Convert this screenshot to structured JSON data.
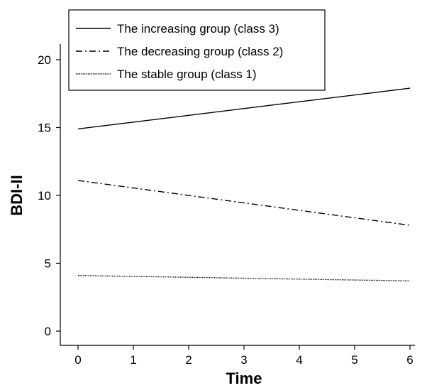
{
  "chart_data": {
    "type": "line",
    "xlabel": "Time",
    "ylabel": "BDI-II",
    "xlim": [
      0,
      6
    ],
    "ylim": [
      0,
      20
    ],
    "xticks": [
      0,
      1,
      2,
      3,
      4,
      5,
      6
    ],
    "yticks": [
      0,
      5,
      10,
      15,
      20
    ],
    "grid": false,
    "legend_position": "top-left",
    "series": [
      {
        "name": "The increasing group (class 3)",
        "x": [
          0,
          6
        ],
        "values": [
          14.9,
          17.9
        ],
        "line_style": "solid",
        "color": "#000000"
      },
      {
        "name": "The decreasing group (class 2)",
        "x": [
          0,
          6
        ],
        "values": [
          11.1,
          7.8
        ],
        "line_style": "dash-dot",
        "color": "#000000"
      },
      {
        "name": "The stable group (class 1)",
        "x": [
          0,
          6
        ],
        "values": [
          4.1,
          3.7
        ],
        "line_style": "dotted",
        "color": "#000000"
      }
    ]
  }
}
